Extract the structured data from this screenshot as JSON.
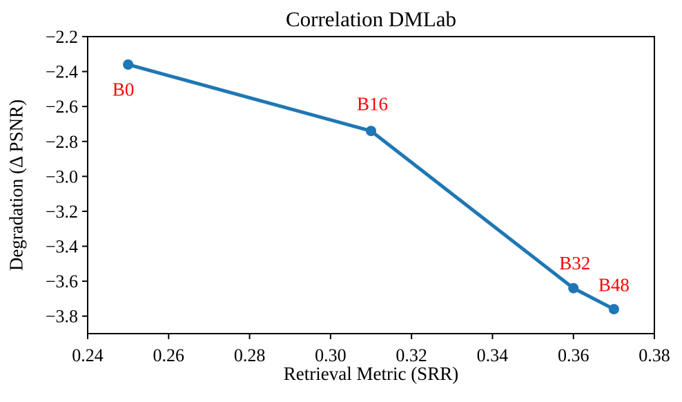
{
  "figure": {
    "background": "#ffffff"
  },
  "chart_data": {
    "type": "line",
    "title": "Correlation DMLab",
    "xlabel": "Retrieval Metric (SRR)",
    "ylabel": "Degradation (Δ PSNR)",
    "xlim": [
      0.24,
      0.38
    ],
    "ylim": [
      -3.9,
      -2.2
    ],
    "xticks": {
      "values": [
        0.24,
        0.26,
        0.28,
        0.3,
        0.32,
        0.34,
        0.36,
        0.38
      ],
      "labels": [
        "0.24",
        "0.26",
        "0.28",
        "0.30",
        "0.32",
        "0.34",
        "0.36",
        "0.38"
      ]
    },
    "yticks": {
      "values": [
        -2.2,
        -2.4,
        -2.6,
        -2.8,
        -3.0,
        -3.2,
        -3.4,
        -3.6,
        -3.8
      ],
      "labels": [
        "−2.2",
        "−2.4",
        "−2.6",
        "−2.8",
        "−3.0",
        "−3.2",
        "−3.4",
        "−3.6",
        "−3.8"
      ]
    },
    "grid": false,
    "legend": "none",
    "axis_color": "#000000",
    "annotation_color": "#ff0000",
    "series": [
      {
        "color": "#1f77b4",
        "marker": "circle",
        "points": [
          {
            "label": "B0",
            "x": 0.25,
            "y": -2.36,
            "label_offset": [
              -7,
              45
            ]
          },
          {
            "label": "B16",
            "x": 0.31,
            "y": -2.74,
            "label_offset": [
              2,
              -30
            ]
          },
          {
            "label": "B32",
            "x": 0.36,
            "y": -3.64,
            "label_offset": [
              2,
              -27
            ]
          },
          {
            "label": "B48",
            "x": 0.37,
            "y": -3.76,
            "label_offset": [
              0,
              -26
            ]
          }
        ]
      }
    ]
  }
}
